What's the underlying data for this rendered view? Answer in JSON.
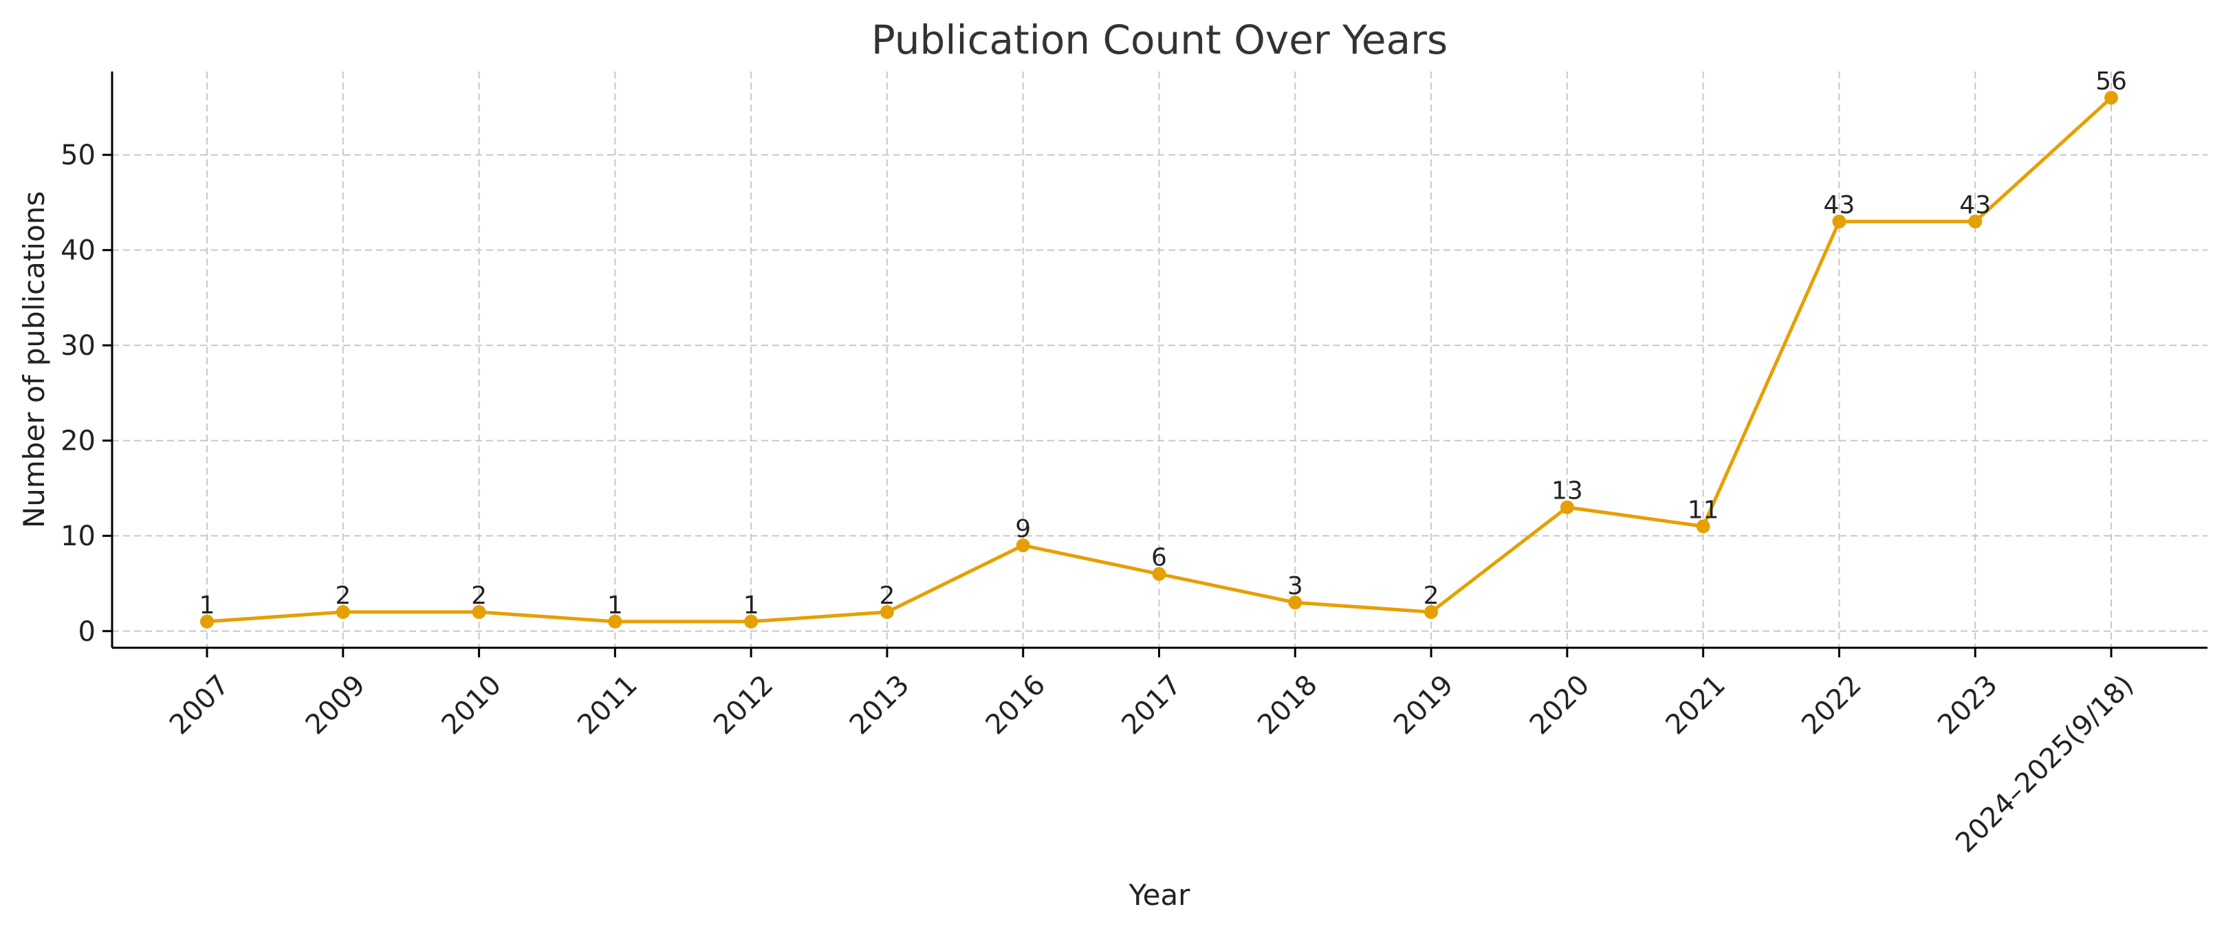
{
  "chart_data": {
    "type": "line",
    "title": "Publication Count Over Years",
    "xlabel": "Year",
    "ylabel": "Number of publications",
    "categories": [
      "2007",
      "2009",
      "2010",
      "2011",
      "2012",
      "2013",
      "2016",
      "2017",
      "2018",
      "2019",
      "2020",
      "2021",
      "2022",
      "2023",
      "2024–2025(9/18)"
    ],
    "series": [
      {
        "values": [
          1,
          2,
          2,
          1,
          1,
          2,
          9,
          6,
          3,
          2,
          13,
          11,
          43,
          43,
          56
        ],
        "color": "#E69F00"
      }
    ],
    "ylim": [
      -1.75,
      58.75
    ],
    "yticks": [
      0,
      10,
      20,
      30,
      40,
      50
    ],
    "grid": true,
    "data_labels": true,
    "legend": "none"
  }
}
